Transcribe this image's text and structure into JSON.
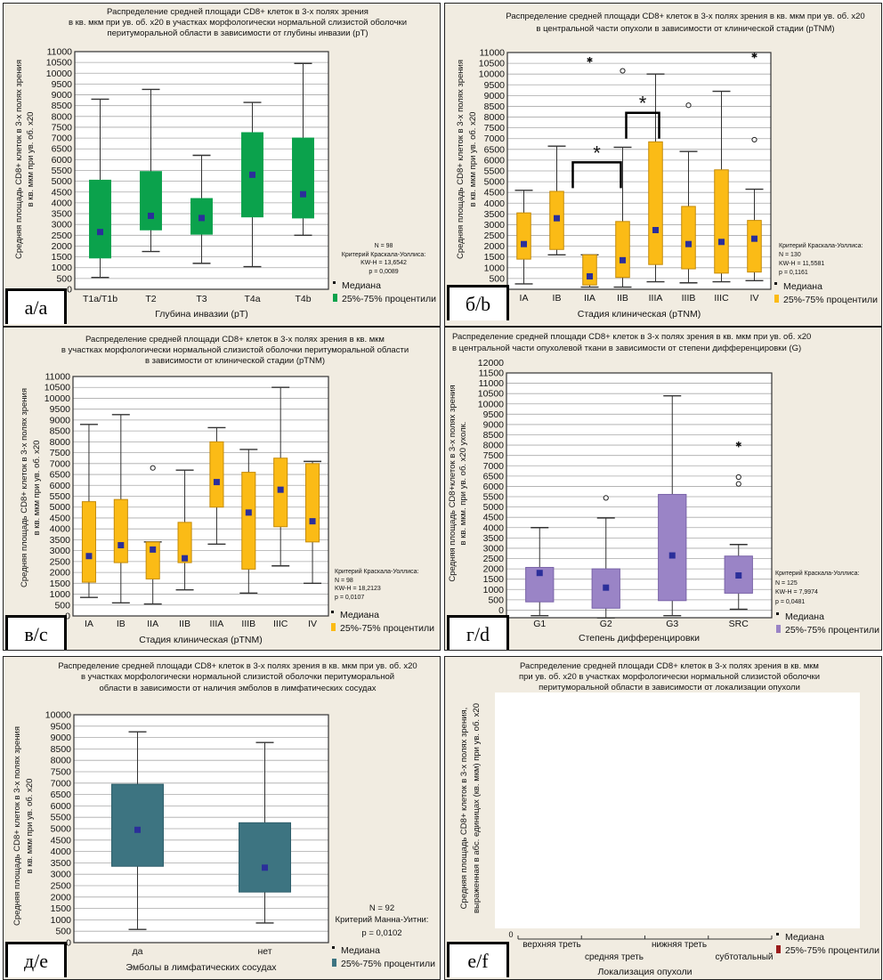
{
  "legend": {
    "median": "Медиана",
    "percentiles": "25%-75% процентили"
  },
  "colors": {
    "median": "#2b2f9a",
    "whisker": "#333333",
    "grid": "#a9a9a9"
  },
  "chart_data": [
    {
      "id": "a",
      "letter": "а/a",
      "type": "boxplot",
      "title": [
        "Распределение средней площади CD8+ клеток в 3-х полях зрения",
        "в кв. мкм при ув. об. x20 в участках морфологически нормальной слизистой оболочки",
        "перитуморальной области в зависимости от глубины инвазии (pT)"
      ],
      "ylabel": [
        "Средняя площадь CD8+ клеток в 3-х полях зрения",
        "в кв. мкм при ув. об. x20"
      ],
      "xlabel": "Глубина инвазии (pT)",
      "ylim": [
        0,
        11000
      ],
      "ytick_step": 500,
      "grid": true,
      "box_color": "#0ba24c",
      "box_border": "#0ba24c",
      "categories": [
        "T1a/T1b",
        "T2",
        "T3",
        "T4a",
        "T4b"
      ],
      "boxes": [
        {
          "min": 550,
          "q1": 1450,
          "median": 2650,
          "q3": 5050,
          "max": 8800
        },
        {
          "min": 1750,
          "q1": 2750,
          "median": 3400,
          "q3": 5450,
          "max": 9250
        },
        {
          "min": 1200,
          "q1": 2550,
          "median": 3300,
          "q3": 4200,
          "max": 6200
        },
        {
          "min": 1050,
          "q1": 3350,
          "median": 5300,
          "q3": 7250,
          "max": 8650
        },
        {
          "min": 2500,
          "q1": 3300,
          "median": 4400,
          "q3": 7000,
          "max": 10450
        }
      ],
      "stats": [
        "N = 98",
        "Критерий Краскала-Уоллиса:",
        "KW-H = 13,6542",
        "p = 0,0089"
      ]
    },
    {
      "id": "b",
      "letter": "б/b",
      "type": "boxplot",
      "title": [
        "Распределение средней площади CD8+ клеток в 3-х полях зрения в кв. мкм при ув. об. x20",
        "в центральной части опухоли в зависимости от клинической стадии (pTNM)"
      ],
      "ylabel": [
        "Средняя площадь CD8+ клеток в 3-х полях зрения",
        "в кв. мкм при ув. об. x20"
      ],
      "xlabel": "Стадия клиническая (pTNM)",
      "ylim": [
        0,
        11000
      ],
      "ytick_step": 500,
      "grid": true,
      "box_color": "#fbbb16",
      "box_border": "#c48b0a",
      "categories": [
        "IA",
        "IB",
        "IIA",
        "IIB",
        "IIIA",
        "IIIB",
        "IIIC",
        "IV"
      ],
      "boxes": [
        {
          "min": 250,
          "q1": 1400,
          "median": 2100,
          "q3": 3550,
          "max": 4600
        },
        {
          "min": 1600,
          "q1": 1850,
          "median": 3300,
          "q3": 4550,
          "max": 6650
        },
        {
          "min": 100,
          "q1": 200,
          "median": 600,
          "q3": 1600,
          "max": 1600,
          "outliers": [],
          "extremes": [
            10700
          ]
        },
        {
          "min": 100,
          "q1": 550,
          "median": 1350,
          "q3": 3150,
          "max": 6600,
          "outliers": [
            10150
          ]
        },
        {
          "min": 350,
          "q1": 1150,
          "median": 2750,
          "q3": 6850,
          "max": 10000
        },
        {
          "min": 300,
          "q1": 950,
          "median": 2100,
          "q3": 3850,
          "max": 6400,
          "outliers": [
            8550
          ]
        },
        {
          "min": 350,
          "q1": 750,
          "median": 2200,
          "q3": 5550,
          "max": 9200
        },
        {
          "min": 400,
          "q1": 800,
          "median": 2350,
          "q3": 3200,
          "max": 4650,
          "outliers": [
            6950
          ],
          "extremes": [
            10900
          ]
        }
      ],
      "brackets": [
        {
          "from": "IB",
          "to": "IIB",
          "level": 5900,
          "label": "*"
        },
        {
          "from": "IIB",
          "to": "IIIA",
          "level": 8200,
          "label": "*"
        }
      ],
      "stats": [
        "Критерий Краскала-Уоллиса:",
        "N = 130",
        "KW-H = 11,5581",
        "p = 0,1161"
      ]
    },
    {
      "id": "c",
      "letter": "в/c",
      "type": "boxplot",
      "title": [
        "Распределение средней площади CD8+ клеток в 3-х полях зрения в кв. мкм",
        "в участках морфологически нормальной слизистой оболочки перитуморальной области",
        "в зависимости от клинической стадии (pTNM)"
      ],
      "ylabel": [
        "Средняя площадь CD8+ клеток в 3-х полях зрения",
        "в кв. мкм при ув. об. x20"
      ],
      "xlabel": "Стадия клиническая (pTNM)",
      "ylim": [
        0,
        11000
      ],
      "ytick_step": 500,
      "grid": true,
      "box_color": "#fbbb16",
      "box_border": "#c48b0a",
      "categories": [
        "IA",
        "IB",
        "IIA",
        "IIB",
        "IIIA",
        "IIIB",
        "IIIC",
        "IV"
      ],
      "boxes": [
        {
          "min": 850,
          "q1": 1550,
          "median": 2750,
          "q3": 5250,
          "max": 8800
        },
        {
          "min": 600,
          "q1": 2450,
          "median": 3250,
          "q3": 5350,
          "max": 9250
        },
        {
          "min": 550,
          "q1": 1700,
          "median": 3050,
          "q3": 3400,
          "max": 3400,
          "outliers": [
            6800
          ]
        },
        {
          "min": 1200,
          "q1": 2450,
          "median": 2650,
          "q3": 4300,
          "max": 6700
        },
        {
          "min": 3300,
          "q1": 5000,
          "median": 6150,
          "q3": 8000,
          "max": 8650
        },
        {
          "min": 1050,
          "q1": 2150,
          "median": 4750,
          "q3": 6600,
          "max": 7650
        },
        {
          "min": 2300,
          "q1": 4100,
          "median": 5800,
          "q3": 7250,
          "max": 10500
        },
        {
          "min": 1500,
          "q1": 3400,
          "median": 4350,
          "q3": 7000,
          "max": 7100
        }
      ],
      "stats": [
        "Критерий Краскала-Уоллиса:",
        "N = 98",
        "KW-H = 18,2123",
        "p = 0,0107"
      ]
    },
    {
      "id": "d",
      "letter": "г/d",
      "type": "boxplot",
      "title": [
        "Распределение средней площади CD8+ клеток в 3-х полях зрения в кв. мкм при ув. об. x20",
        "в центральной части опухолевой ткани в зависимости от степени дифференцировки (G)"
      ],
      "ylabel": [
        "Средняя площадь CD8+клеток в 3-х полях зрения",
        "в кв. мкм. при ув. об. x20 ухолк."
      ],
      "xlabel": "Степень дифференцировки",
      "ylim": [
        -370,
        11500
      ],
      "ytick_step": 500,
      "ytick_max": 12000,
      "grid": true,
      "box_color": "#9a84c6",
      "box_border": "#7a64a8",
      "categories": [
        "G1",
        "G2",
        "G3",
        "SRC"
      ],
      "boxes": [
        {
          "min": -270,
          "q1": 400,
          "median": 1800,
          "q3": 2070,
          "max": 4000
        },
        {
          "min": -380,
          "q1": 90,
          "median": 1090,
          "q3": 2000,
          "max": 4470,
          "outliers": [
            5440
          ]
        },
        {
          "min": -270,
          "q1": 460,
          "median": 2650,
          "q3": 5610,
          "max": 10390
        },
        {
          "min": 40,
          "q1": 820,
          "median": 1680,
          "q3": 2620,
          "max": 3180,
          "outliers": [
            6450,
            6120
          ],
          "extremes": [
            8075
          ]
        }
      ],
      "stats": [
        "Критерий Краскала-Уоллиса:",
        "N = 125",
        "KW-H = 7,9974",
        "p = 0,0481"
      ]
    },
    {
      "id": "e",
      "letter": "д/e",
      "type": "boxplot",
      "title": [
        "Распределение средней площади CD8+ клеток в 3-х полях зрения в кв. мкм при ув. об. x20",
        "в участках морфологически нормальной слизистой оболочки перитуморальной",
        "области в зависимости от наличия эмболов в  лимфатических сосудах"
      ],
      "ylabel": [
        "Средняя площадь CD8+ клеток в 3-х полях зрения",
        "в кв. мкм при ув. об. x20"
      ],
      "xlabel": "Эмболы в лимфатических сосудах",
      "ylim": [
        0,
        10000
      ],
      "ytick_step": 500,
      "grid": true,
      "box_color": "#3d7481",
      "box_border": "#2f5f6b",
      "categories": [
        "да",
        "нет"
      ],
      "boxes": [
        {
          "min": 580,
          "q1": 3350,
          "median": 4950,
          "q3": 6950,
          "max": 9250
        },
        {
          "min": 860,
          "q1": 2220,
          "median": 3290,
          "q3": 5260,
          "max": 8780
        }
      ],
      "stats": [
        "N = 92",
        "Критерий Манна-Уитни:",
        "p = 0,0102"
      ]
    },
    {
      "id": "f",
      "letter": "е/f",
      "type": "boxplot",
      "title": [
        "Распределение средней площади CD8+ клеток в 3-х полях зрения в кв. мкм",
        "при ув. об. x20 в участках морфологически нормальной слизистой оболочки",
        "перитуморальной области в зависимости от локализации опухоли"
      ],
      "ylabel": [
        "Средняя площадь CD8+ клеток в 3-х полях зрения,",
        "выраженная в абс. единицах (кв. мкм) при ув. об. x20"
      ],
      "xlabel": "Локализация опухоли",
      "box_color": "#9b1c1c",
      "categories": [
        "верхняя треть",
        "средняя треть",
        "нижняя треть",
        "субтотальный"
      ],
      "boxes": []
    }
  ]
}
